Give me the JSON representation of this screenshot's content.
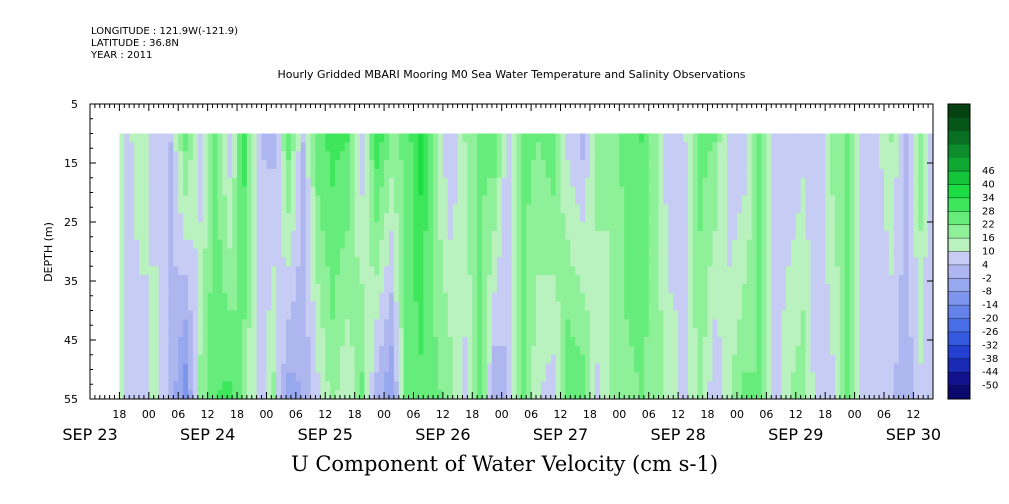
{
  "header": {
    "longitude": "LONGITUDE : 121.9W(-121.9)",
    "latitude": "LATITUDE : 36.8N",
    "year": "YEAR : 2011",
    "title": "Hourly Gridded MBARI Mooring M0 Sea Water Temperature and Salinity Observations"
  },
  "chart_data": {
    "type": "heatmap",
    "title": "Hourly Gridded MBARI Mooring M0 Sea Water Temperature and Salinity Observations",
    "xlabel": "U Component of Water Velocity (cm s-1)",
    "ylabel": "DEPTH (m)",
    "ylim": [
      5,
      55
    ],
    "y_inverted": true,
    "y_ticks": [
      5,
      15,
      25,
      35,
      45,
      55
    ],
    "x_start": "2011-09-23 12:00",
    "x_end": "2011-09-30 16:00",
    "data_start": "2011-09-23 18:00",
    "depth_range": [
      10,
      55
    ],
    "x_hour_ticks": [
      {
        "t": "2011-09-23 18:00",
        "label": "18"
      },
      {
        "t": "2011-09-24 00:00",
        "label": "00"
      },
      {
        "t": "2011-09-24 06:00",
        "label": "06"
      },
      {
        "t": "2011-09-24 12:00",
        "label": "12"
      },
      {
        "t": "2011-09-24 18:00",
        "label": "18"
      },
      {
        "t": "2011-09-25 00:00",
        "label": "00"
      },
      {
        "t": "2011-09-25 06:00",
        "label": "06"
      },
      {
        "t": "2011-09-25 12:00",
        "label": "12"
      },
      {
        "t": "2011-09-25 18:00",
        "label": "18"
      },
      {
        "t": "2011-09-26 00:00",
        "label": "00"
      },
      {
        "t": "2011-09-26 06:00",
        "label": "06"
      },
      {
        "t": "2011-09-26 12:00",
        "label": "12"
      },
      {
        "t": "2011-09-26 18:00",
        "label": "18"
      },
      {
        "t": "2011-09-27 00:00",
        "label": "00"
      },
      {
        "t": "2011-09-27 06:00",
        "label": "06"
      },
      {
        "t": "2011-09-27 12:00",
        "label": "12"
      },
      {
        "t": "2011-09-27 18:00",
        "label": "18"
      },
      {
        "t": "2011-09-28 00:00",
        "label": "00"
      },
      {
        "t": "2011-09-28 06:00",
        "label": "06"
      },
      {
        "t": "2011-09-28 12:00",
        "label": "12"
      },
      {
        "t": "2011-09-28 18:00",
        "label": "18"
      },
      {
        "t": "2011-09-29 00:00",
        "label": "00"
      },
      {
        "t": "2011-09-29 06:00",
        "label": "06"
      },
      {
        "t": "2011-09-29 12:00",
        "label": "12"
      },
      {
        "t": "2011-09-29 18:00",
        "label": "18"
      },
      {
        "t": "2011-09-30 00:00",
        "label": "00"
      },
      {
        "t": "2011-09-30 06:00",
        "label": "06"
      },
      {
        "t": "2011-09-30 12:00",
        "label": "12"
      }
    ],
    "x_day_labels": [
      {
        "t": "2011-09-23 12:00",
        "label": "SEP 23"
      },
      {
        "t": "2011-09-24 12:00",
        "label": "SEP 24"
      },
      {
        "t": "2011-09-25 12:00",
        "label": "SEP 25"
      },
      {
        "t": "2011-09-26 12:00",
        "label": "SEP 26"
      },
      {
        "t": "2011-09-27 12:00",
        "label": "SEP 27"
      },
      {
        "t": "2011-09-28 12:00",
        "label": "SEP 28"
      },
      {
        "t": "2011-09-29 12:00",
        "label": "SEP 29"
      },
      {
        "t": "2011-09-30 12:00",
        "label": "SEP 30"
      }
    ],
    "colorbar_levels": [
      -50,
      -44,
      -38,
      -32,
      -26,
      -20,
      -14,
      -8,
      -2,
      4,
      10,
      16,
      22,
      28,
      34,
      40,
      46
    ],
    "colorbar_colors": [
      "#0a0a6e",
      "#12128f",
      "#1a2ab5",
      "#2440d2",
      "#3558e0",
      "#4a6ee6",
      "#6483ea",
      "#7d95ec",
      "#98a8ee",
      "#aeb6f0",
      "#c6ccf4",
      "#b9f2be",
      "#8ff09a",
      "#66ec7a",
      "#3ee65c",
      "#1cde44",
      "#14c43a",
      "#10a832",
      "#0c8c2a",
      "#096f22",
      "#065619",
      "#044212"
    ],
    "u_profile_surface": [
      [
        -1.5,
        2
      ],
      [
        1,
        -4
      ],
      [
        4,
        2
      ],
      [
        7,
        -6
      ],
      [
        10,
        -8
      ],
      [
        13,
        12
      ],
      [
        16,
        -6
      ],
      [
        19,
        12
      ],
      [
        22,
        -6
      ],
      [
        25,
        18
      ],
      [
        28,
        -8
      ],
      [
        31,
        -10
      ],
      [
        34,
        12
      ],
      [
        37,
        -8
      ],
      [
        40,
        14
      ],
      [
        43,
        18
      ],
      [
        46,
        16
      ],
      [
        49,
        -6
      ],
      [
        52,
        20
      ],
      [
        55,
        8
      ],
      [
        58,
        12
      ],
      [
        61,
        24
      ],
      [
        64,
        4
      ],
      [
        67,
        -8
      ],
      [
        70,
        4
      ],
      [
        73,
        10
      ],
      [
        76,
        14
      ],
      [
        79,
        -8
      ],
      [
        82,
        12
      ],
      [
        85,
        10
      ],
      [
        88,
        14
      ],
      [
        91,
        -4
      ],
      [
        94,
        -10
      ],
      [
        97,
        8
      ],
      [
        100,
        4
      ],
      [
        103,
        14
      ],
      [
        106,
        16
      ],
      [
        109,
        4
      ],
      [
        112,
        -8
      ],
      [
        115,
        -2
      ],
      [
        118,
        12
      ],
      [
        121,
        10
      ],
      [
        124,
        -8
      ],
      [
        127,
        -6
      ],
      [
        130,
        10
      ],
      [
        133,
        -4
      ],
      [
        136,
        -8
      ],
      [
        139,
        -4
      ],
      [
        142,
        -8
      ],
      [
        145,
        6
      ],
      [
        148,
        10
      ],
      [
        151,
        -6
      ],
      [
        154,
        -4
      ],
      [
        157,
        4
      ],
      [
        160,
        -10
      ],
      [
        163,
        8
      ],
      [
        166,
        -12
      ],
      [
        169,
        4
      ]
    ],
    "u_profile_bottom": [
      [
        -1.5,
        2
      ],
      [
        1,
        -4
      ],
      [
        4,
        -6
      ],
      [
        7,
        2
      ],
      [
        10,
        -10
      ],
      [
        13,
        -26
      ],
      [
        16,
        6
      ],
      [
        19,
        16
      ],
      [
        22,
        18
      ],
      [
        25,
        6
      ],
      [
        28,
        -6
      ],
      [
        31,
        6
      ],
      [
        34,
        -18
      ],
      [
        37,
        -14
      ],
      [
        40,
        -4
      ],
      [
        43,
        6
      ],
      [
        46,
        -2
      ],
      [
        49,
        12
      ],
      [
        52,
        -12
      ],
      [
        55,
        -20
      ],
      [
        58,
        12
      ],
      [
        61,
        14
      ],
      [
        64,
        12
      ],
      [
        67,
        8
      ],
      [
        70,
        -4
      ],
      [
        73,
        14
      ],
      [
        76,
        -14
      ],
      [
        79,
        -8
      ],
      [
        82,
        10
      ],
      [
        85,
        -2
      ],
      [
        88,
        -6
      ],
      [
        91,
        16
      ],
      [
        94,
        14
      ],
      [
        97,
        -4
      ],
      [
        100,
        4
      ],
      [
        103,
        8
      ],
      [
        106,
        10
      ],
      [
        109,
        8
      ],
      [
        112,
        2
      ],
      [
        115,
        -4
      ],
      [
        118,
        6
      ],
      [
        121,
        -8
      ],
      [
        124,
        4
      ],
      [
        127,
        12
      ],
      [
        130,
        10
      ],
      [
        133,
        -6
      ],
      [
        136,
        4
      ],
      [
        139,
        8
      ],
      [
        142,
        -6
      ],
      [
        145,
        -4
      ],
      [
        148,
        10
      ],
      [
        151,
        -4
      ],
      [
        154,
        -8
      ],
      [
        157,
        -8
      ],
      [
        160,
        -12
      ],
      [
        163,
        -4
      ],
      [
        166,
        -10
      ],
      [
        169,
        -8
      ]
    ]
  }
}
